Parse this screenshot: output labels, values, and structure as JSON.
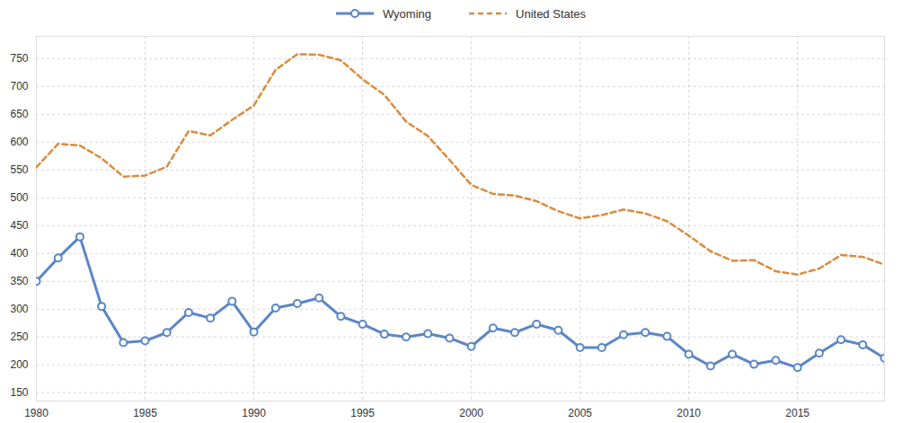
{
  "chart_data": {
    "type": "line",
    "x": [
      1980,
      1981,
      1982,
      1983,
      1984,
      1985,
      1986,
      1987,
      1988,
      1989,
      1990,
      1991,
      1992,
      1993,
      1994,
      1995,
      1996,
      1997,
      1998,
      1999,
      2000,
      2001,
      2002,
      2003,
      2004,
      2005,
      2006,
      2007,
      2008,
      2009,
      2010,
      2011,
      2012,
      2013,
      2014,
      2015,
      2016,
      2017,
      2018,
      2019
    ],
    "series": [
      {
        "name": "Wyoming",
        "color": "#5b86c5",
        "marker": "circle",
        "line_style": "solid",
        "values": [
          350,
          392,
          430,
          305,
          240,
          243,
          258,
          294,
          284,
          314,
          259,
          302,
          310,
          320,
          287,
          273,
          255,
          250,
          256,
          248,
          233,
          266,
          258,
          273,
          262,
          231,
          231,
          254,
          258,
          251,
          219,
          198,
          219,
          201,
          208,
          195,
          221,
          245,
          236,
          212
        ]
      },
      {
        "name": "United States",
        "color": "#d98c3f",
        "marker": "none",
        "line_style": "dashed",
        "values": [
          555,
          597,
          594,
          571,
          538,
          540,
          556,
          620,
          612,
          640,
          666,
          730,
          758,
          757,
          747,
          713,
          685,
          637,
          611,
          568,
          523,
          507,
          504,
          494,
          476,
          463,
          469,
          479,
          472,
          458,
          432,
          404,
          387,
          388,
          368,
          362,
          373,
          397,
          394,
          380
        ]
      }
    ],
    "xlim": [
      1980,
      2019
    ],
    "ylim": [
      135,
      790
    ],
    "xticks": [
      1980,
      1985,
      1990,
      1995,
      2000,
      2005,
      2010,
      2015
    ],
    "yticks": [
      150,
      200,
      250,
      300,
      350,
      400,
      450,
      500,
      550,
      600,
      650,
      700,
      750
    ],
    "grid": true,
    "legend": "top"
  }
}
